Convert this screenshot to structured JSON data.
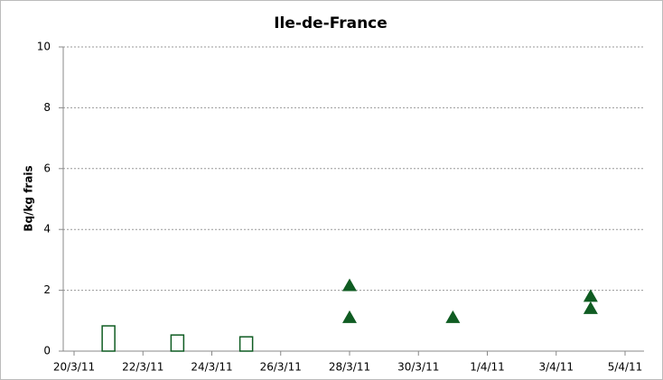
{
  "chart_data": {
    "type": "combo",
    "title": "Ile-de-France",
    "y_label": "Bq/kg frais",
    "ylim": [
      0,
      10
    ],
    "yticks": [
      0,
      2,
      4,
      6,
      8,
      10
    ],
    "grid": true,
    "xlim": [
      "20/3/11",
      "5/4/11"
    ],
    "xticks": [
      "20/3/11",
      "22/3/11",
      "24/3/11",
      "26/3/11",
      "28/3/11",
      "30/3/11",
      "1/4/11",
      "3/4/11",
      "5/4/11"
    ],
    "series": [
      {
        "type": "bar",
        "color": "#0f5c22",
        "fill": "none",
        "x": [
          "21/3/11",
          "23/3/11",
          "25/3/11"
        ],
        "values": [
          0.83,
          0.53,
          0.47
        ]
      },
      {
        "type": "scatter",
        "marker": "triangle",
        "color": "#0f5c22",
        "x": [
          "28/3/11",
          "28/3/11",
          "31/3/11",
          "4/4/11",
          "4/4/11"
        ],
        "values": [
          2.15,
          1.1,
          1.1,
          1.8,
          1.4
        ]
      }
    ]
  }
}
